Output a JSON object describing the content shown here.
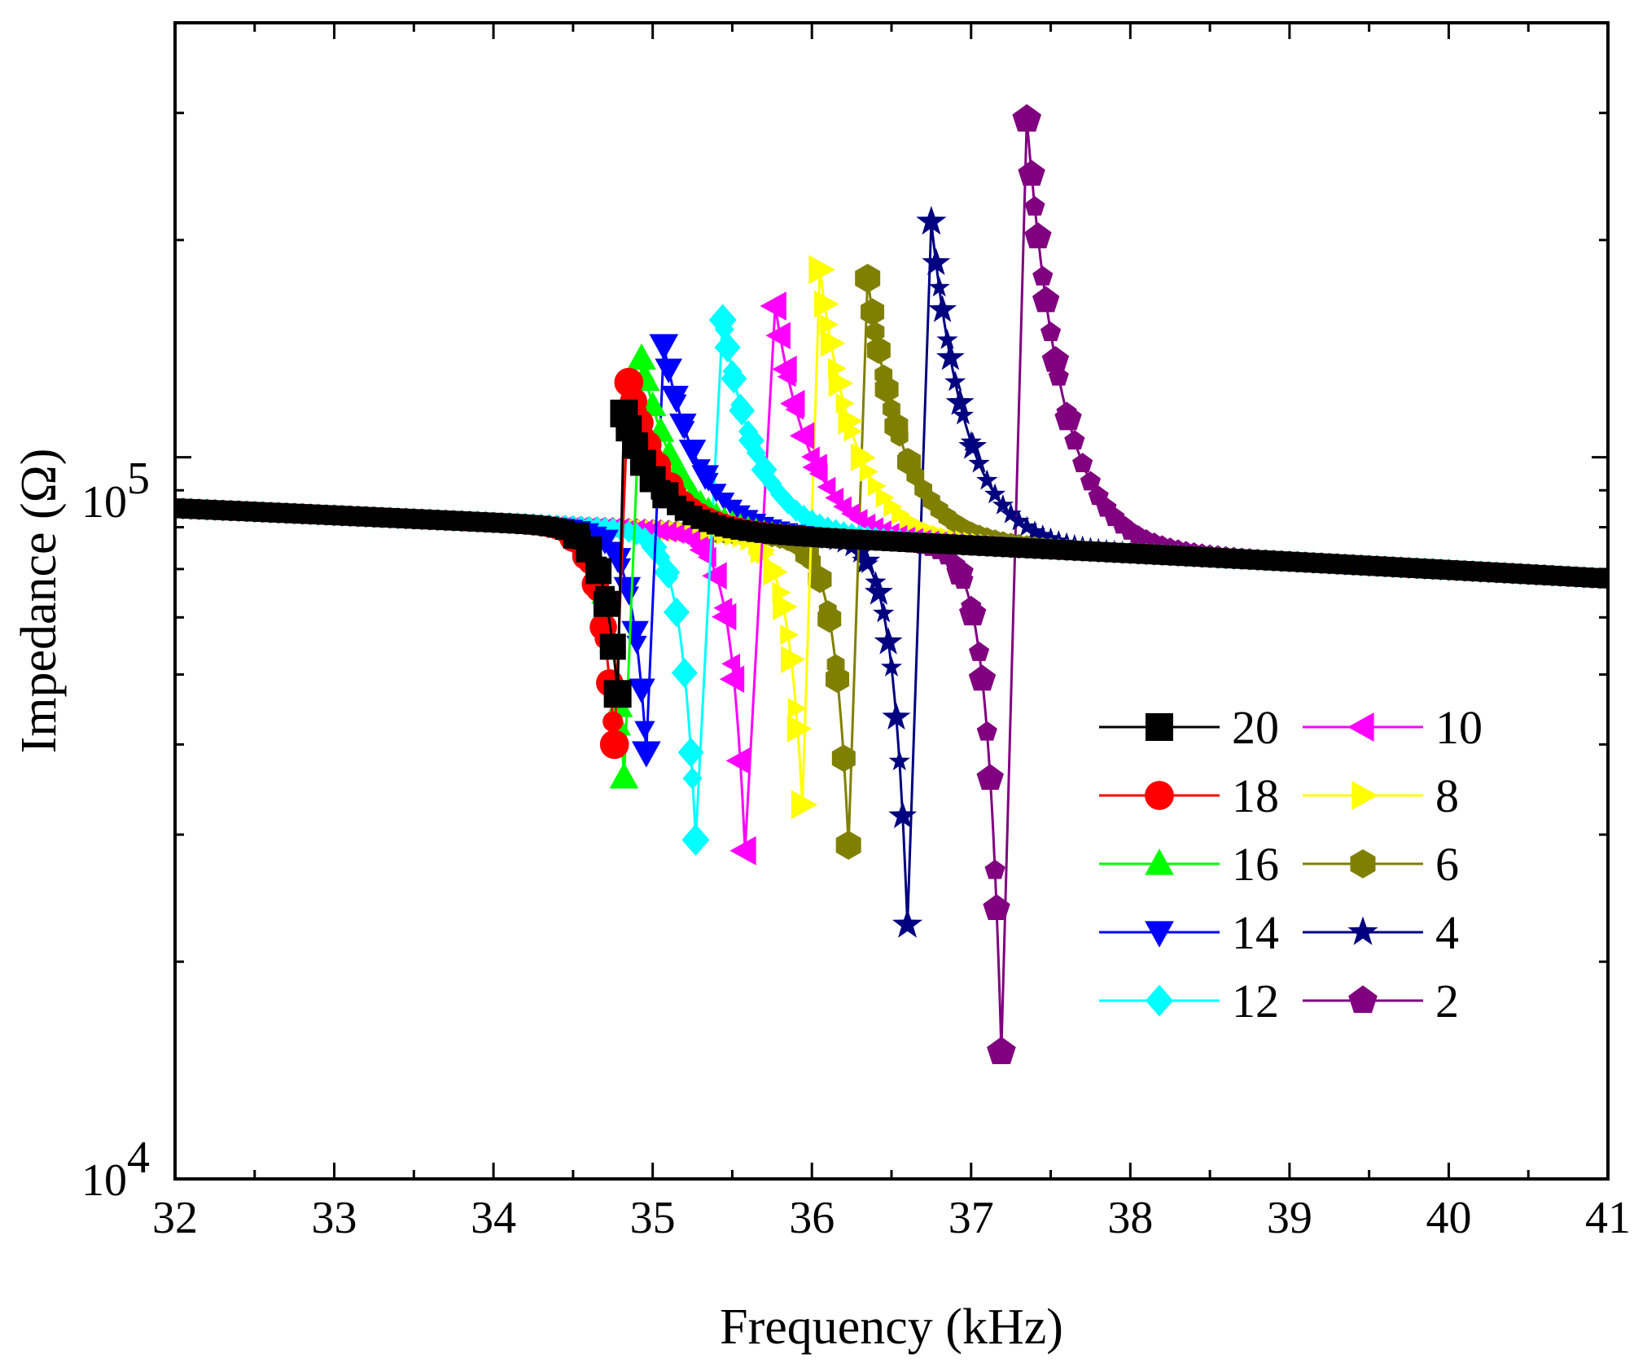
{
  "chart_data": {
    "type": "line",
    "title": "",
    "xlabel": "Frequency (kHz)",
    "ylabel": "Impedance (Ω)",
    "xlim": [
      32,
      41
    ],
    "ylim": [
      10000,
      400000
    ],
    "yscale": "log",
    "x_ticks": [
      32,
      33,
      34,
      35,
      36,
      37,
      38,
      39,
      40,
      41
    ],
    "x_tick_labels": [
      "32",
      "33",
      "34",
      "35",
      "36",
      "37",
      "38",
      "39",
      "40",
      "41"
    ],
    "y_tick_labels": [
      {
        "value": 10000,
        "base": "10",
        "exp": "4"
      },
      {
        "value": 100000,
        "base": "10",
        "exp": "5"
      }
    ],
    "legend_position": "lower-right",
    "series": [
      {
        "name": "20",
        "color": "#000000",
        "marker": "square",
        "fr": 34.78,
        "fa": 34.82,
        "zmin": 47000,
        "zmax": 115000
      },
      {
        "name": "18",
        "color": "#ff0000",
        "marker": "circle",
        "fr": 34.76,
        "fa": 34.85,
        "zmin": 40000,
        "zmax": 127000
      },
      {
        "name": "16",
        "color": "#00ff00",
        "marker": "triangle-up",
        "fr": 34.82,
        "fa": 34.93,
        "zmin": 36000,
        "zmax": 137000
      },
      {
        "name": "14",
        "color": "#0000ff",
        "marker": "triangle-down",
        "fr": 34.96,
        "fa": 35.07,
        "zmin": 39000,
        "zmax": 143000
      },
      {
        "name": "12",
        "color": "#00ffff",
        "marker": "diamond",
        "fr": 35.27,
        "fa": 35.44,
        "zmin": 29500,
        "zmax": 155000
      },
      {
        "name": "10",
        "color": "#ff00ff",
        "marker": "triangle-left",
        "fr": 35.58,
        "fa": 35.77,
        "zmin": 28500,
        "zmax": 162000
      },
      {
        "name": "8",
        "color": "#ffff00",
        "marker": "triangle-right",
        "fr": 35.94,
        "fa": 36.05,
        "zmin": 33000,
        "zmax": 182000
      },
      {
        "name": "6",
        "color": "#808000",
        "marker": "hexagon",
        "fr": 36.23,
        "fa": 36.35,
        "zmin": 29000,
        "zmax": 177000
      },
      {
        "name": "4",
        "color": "#000080",
        "marker": "star",
        "fr": 36.6,
        "fa": 36.75,
        "zmin": 22500,
        "zmax": 212000
      },
      {
        "name": "2",
        "color": "#800080",
        "marker": "pentagon",
        "fr": 37.19,
        "fa": 37.35,
        "zmin": 15000,
        "zmax": 294000
      }
    ]
  }
}
